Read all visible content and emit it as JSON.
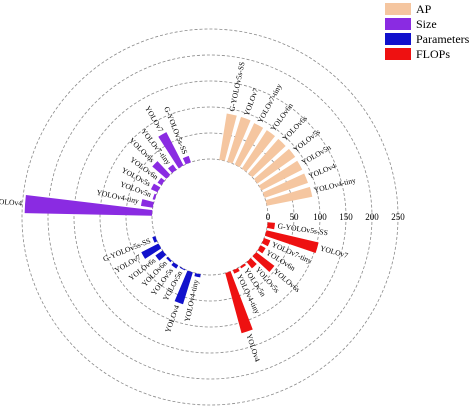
{
  "chart_data": {
    "type": "radial-bar",
    "radial_ticks": [
      0,
      50,
      100,
      150,
      200,
      250
    ],
    "rmax": 250,
    "grid": true,
    "legend_position": "top-right",
    "models": [
      "G-YOLOv5s-SS",
      "YOLOv7",
      "YOLOv7-tiny",
      "YOLOv6n",
      "YOLOv6s",
      "YOLOv5s",
      "YOLOv5n",
      "YOLOv4",
      "YOLOv4-tiny"
    ],
    "series": [
      {
        "name": "AP",
        "color": "#f5c6a0",
        "labels": [
          "G-YOLOv5s-SS",
          "YOLOv7",
          "YOLOv7-tiny",
          "YOLOv6n",
          "YOLOv6s",
          "YOLOv5s",
          "YOLOv5n",
          "YOLOv4",
          "YOLOv4-tiny"
        ],
        "values": [
          90,
          90,
          88,
          88,
          88,
          89,
          88,
          88,
          89
        ]
      },
      {
        "name": "FLOPs",
        "color": "#ee1111",
        "labels": [
          "G-YOLOv5s-SS",
          "YOLOv7",
          "YOLOv7-tiny",
          "YOLOv6n",
          "YOLOv6s",
          "YOLOv5s",
          "YOLOv5n",
          "YOLOv4-tiny",
          "YOLOv4"
        ],
        "values": [
          14,
          103,
          13,
          11,
          44,
          16,
          4,
          7,
          120
        ]
      },
      {
        "name": "Parameters",
        "color": "#1111cc",
        "labels": [
          "G-YOLOv5s-SS",
          "YOLOv7",
          "YOLOv6s",
          "YOLOv6n",
          "YOLOv5s",
          "YOLOv5n",
          "YOLOv4",
          "YOLOv4-tiny"
        ],
        "values": [
          6,
          37,
          17,
          4,
          7,
          2,
          64,
          6
        ]
      },
      {
        "name": "Size",
        "color": "#8a2be2",
        "labels": [
          "G-YOLOv5s-SS",
          "YOLOv7",
          "YOLOv7-tiny",
          "YOLOv6s",
          "YOLOv6n",
          "YOLOv5s",
          "YOLOv5n",
          "YOLOv4-tiny",
          "YOLOv4"
        ],
        "values": [
          13,
          72,
          12,
          36,
          9,
          14,
          4,
          23,
          245
        ]
      }
    ]
  }
}
